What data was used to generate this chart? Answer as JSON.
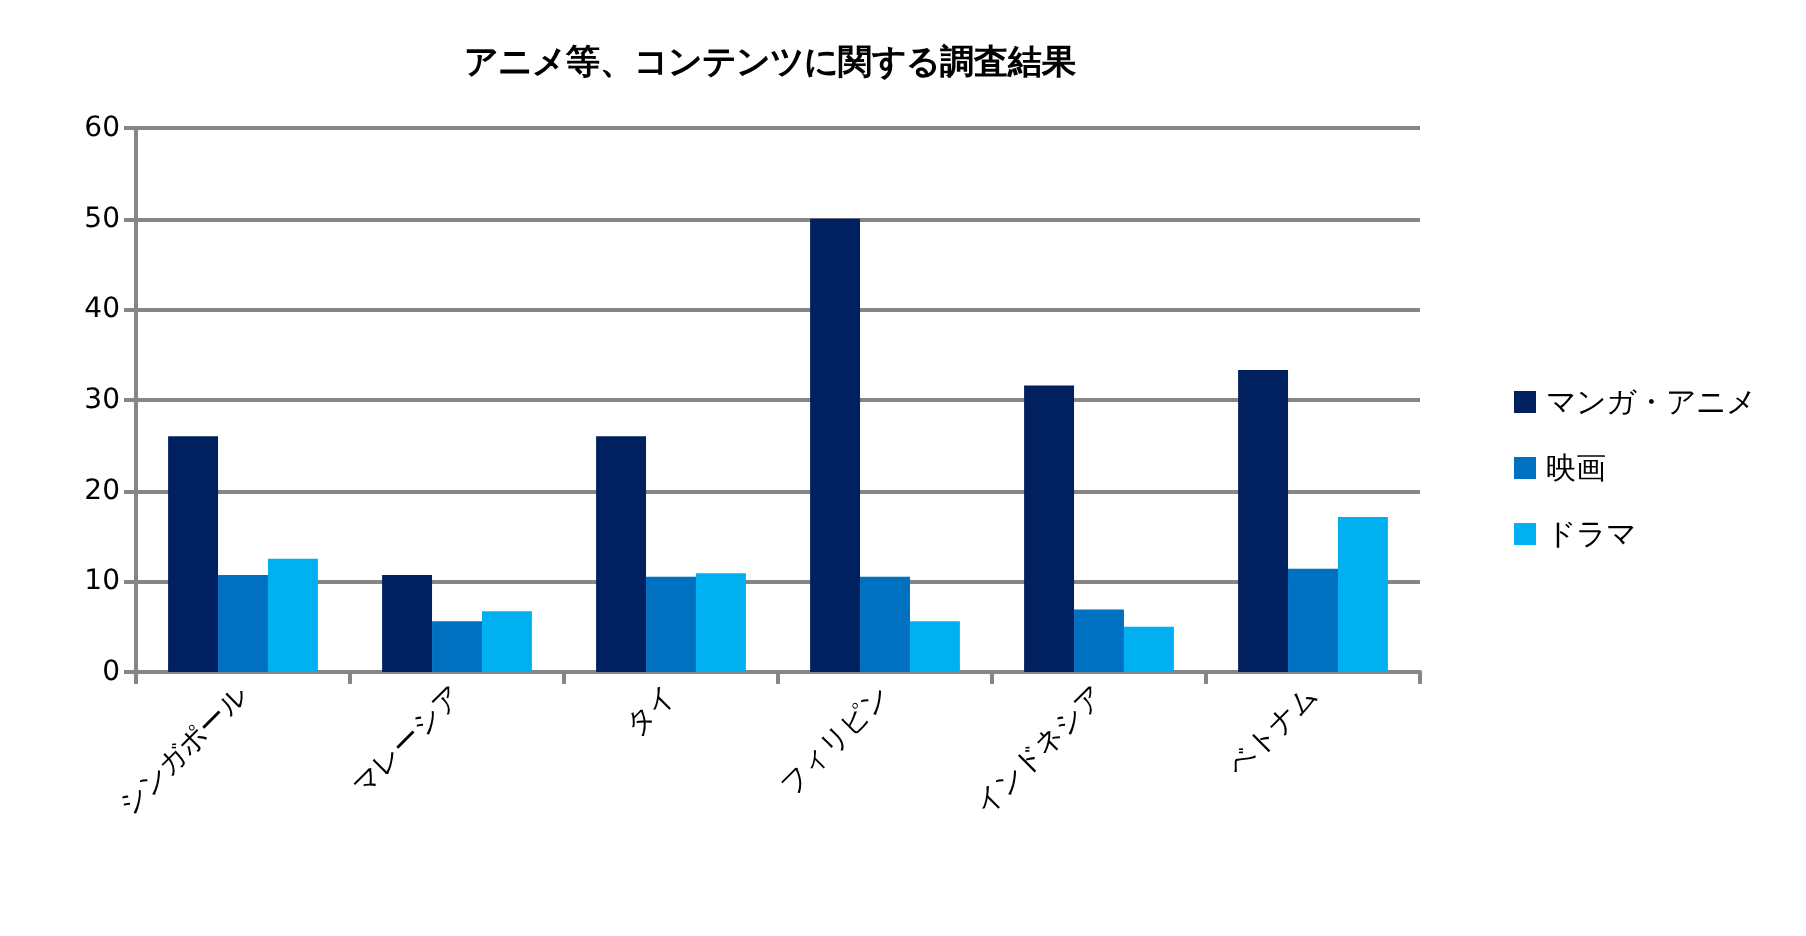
{
  "chart_data": {
    "type": "bar",
    "title": "アニメ等、コンテンツに関する調査結果",
    "categories": [
      "シンガポール",
      "マレーシア",
      "タイ",
      "フィリピン",
      "インドネシア",
      "ベトナム"
    ],
    "series": [
      {
        "name": "マンガ・アニメ",
        "color": "#002060",
        "values": [
          26.0,
          10.7,
          26.0,
          50.0,
          31.6,
          33.3
        ]
      },
      {
        "name": "映画",
        "color": "#0070c0",
        "values": [
          10.7,
          5.6,
          10.5,
          10.5,
          6.9,
          11.4
        ]
      },
      {
        "name": "ドラマ",
        "color": "#00b0f0",
        "values": [
          12.5,
          6.7,
          10.9,
          5.6,
          5.0,
          17.1
        ]
      }
    ],
    "ylim": [
      0,
      60
    ],
    "yticks": [
      0,
      10,
      20,
      30,
      40,
      50,
      60
    ],
    "grid": "y",
    "legend": "right"
  }
}
